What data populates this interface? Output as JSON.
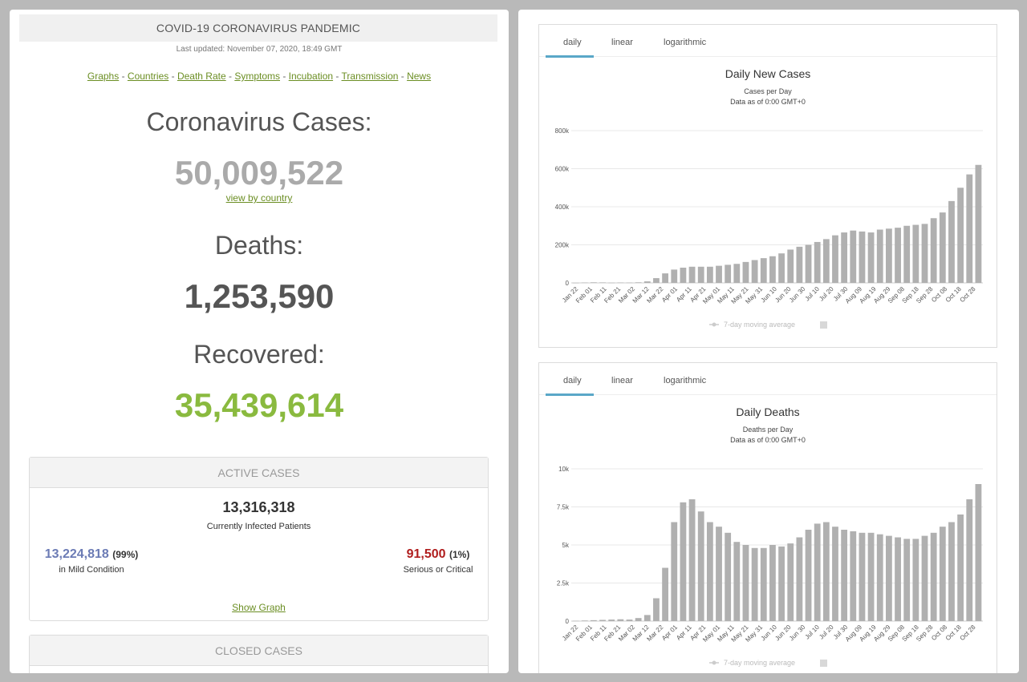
{
  "header": {
    "title": "COVID-19 CORONAVIRUS PANDEMIC",
    "updated": "Last updated: November 07, 2020, 18:49 GMT"
  },
  "nav": [
    "Graphs",
    "Countries",
    "Death Rate",
    "Symptoms",
    "Incubation",
    "Transmission",
    "News"
  ],
  "cases": {
    "label": "Coronavirus Cases:",
    "value": "50,009,522",
    "link": "view by country"
  },
  "deaths": {
    "label": "Deaths:",
    "value": "1,253,590"
  },
  "recovered": {
    "label": "Recovered:",
    "value": "35,439,614"
  },
  "active": {
    "heading": "ACTIVE CASES",
    "total": "13,316,318",
    "subtitle": "Currently Infected Patients",
    "mild_value": "13,224,818",
    "mild_pct": "(99%)",
    "mild_label": "in Mild Condition",
    "serious_value": "91,500",
    "serious_pct": "(1%)",
    "serious_label": "Serious or Critical",
    "show_graph": "Show Graph"
  },
  "closed": {
    "heading": "CLOSED CASES"
  },
  "tabs": [
    "daily",
    "linear",
    "logarithmic"
  ],
  "colors": {
    "link": "#6b8e23",
    "recovered": "#8aba3f",
    "mild": "#6b7bb5",
    "serious": "#b01d1d",
    "bar": "#b0b0b0",
    "tab_active": "#5aa7c8"
  },
  "chart_data": [
    {
      "type": "bar",
      "title": "Daily New Cases",
      "subtitle": "Cases per Day",
      "note": "Data as of 0:00 GMT+0",
      "ylim": [
        0,
        800000
      ],
      "yticks": [
        "0",
        "200k",
        "400k",
        "600k",
        "800k"
      ],
      "xticks": [
        "Jan 22",
        "Feb 01",
        "Feb 11",
        "Feb 21",
        "Mar 02",
        "Mar 12",
        "Mar 22",
        "Apr 01",
        "Apr 11",
        "Apr 21",
        "May 01",
        "May 11",
        "May 21",
        "May 31",
        "Jun 10",
        "Jun 20",
        "Jun 30",
        "Jul 10",
        "Jul 20",
        "Jul 30",
        "Aug 09",
        "Aug 19",
        "Aug 29",
        "Sep 08",
        "Sep 18",
        "Sep 28",
        "Oct 08",
        "Oct 18",
        "Oct 28"
      ],
      "legend": "7-day moving average",
      "grid": true,
      "approx_weekly_values": [
        500,
        2000,
        3000,
        2500,
        1000,
        2000,
        1500,
        3000,
        8000,
        25000,
        50000,
        70000,
        80000,
        85000,
        85000,
        85000,
        90000,
        95000,
        100000,
        110000,
        120000,
        130000,
        140000,
        155000,
        175000,
        190000,
        200000,
        215000,
        230000,
        250000,
        265000,
        275000,
        270000,
        265000,
        280000,
        285000,
        290000,
        300000,
        305000,
        310000,
        340000,
        370000,
        430000,
        500000,
        570000,
        620000
      ]
    },
    {
      "type": "bar",
      "title": "Daily Deaths",
      "subtitle": "Deaths per Day",
      "note": "Data as of 0:00 GMT+0",
      "ylim": [
        0,
        10000
      ],
      "yticks": [
        "0",
        "2.5k",
        "5k",
        "7.5k",
        "10k"
      ],
      "xticks": [
        "Jan 22",
        "Feb 01",
        "Feb 11",
        "Feb 21",
        "Mar 02",
        "Mar 12",
        "Mar 22",
        "Apr 01",
        "Apr 11",
        "Apr 21",
        "May 01",
        "May 11",
        "May 21",
        "May 31",
        "Jun 10",
        "Jun 20",
        "Jun 30",
        "Jul 10",
        "Jul 20",
        "Jul 30",
        "Aug 09",
        "Aug 19",
        "Aug 29",
        "Sep 08",
        "Sep 18",
        "Sep 28",
        "Oct 08",
        "Oct 18",
        "Oct 28"
      ],
      "legend": "7-day moving average",
      "grid": true,
      "approx_weekly_values": [
        20,
        40,
        60,
        80,
        100,
        120,
        100,
        200,
        400,
        1500,
        3500,
        6500,
        7800,
        8000,
        7200,
        6500,
        6200,
        5800,
        5200,
        5000,
        4800,
        4800,
        5000,
        4900,
        5100,
        5500,
        6000,
        6400,
        6500,
        6200,
        6000,
        5900,
        5800,
        5800,
        5700,
        5600,
        5500,
        5400,
        5400,
        5600,
        5800,
        6200,
        6500,
        7000,
        8000,
        9000
      ]
    }
  ]
}
